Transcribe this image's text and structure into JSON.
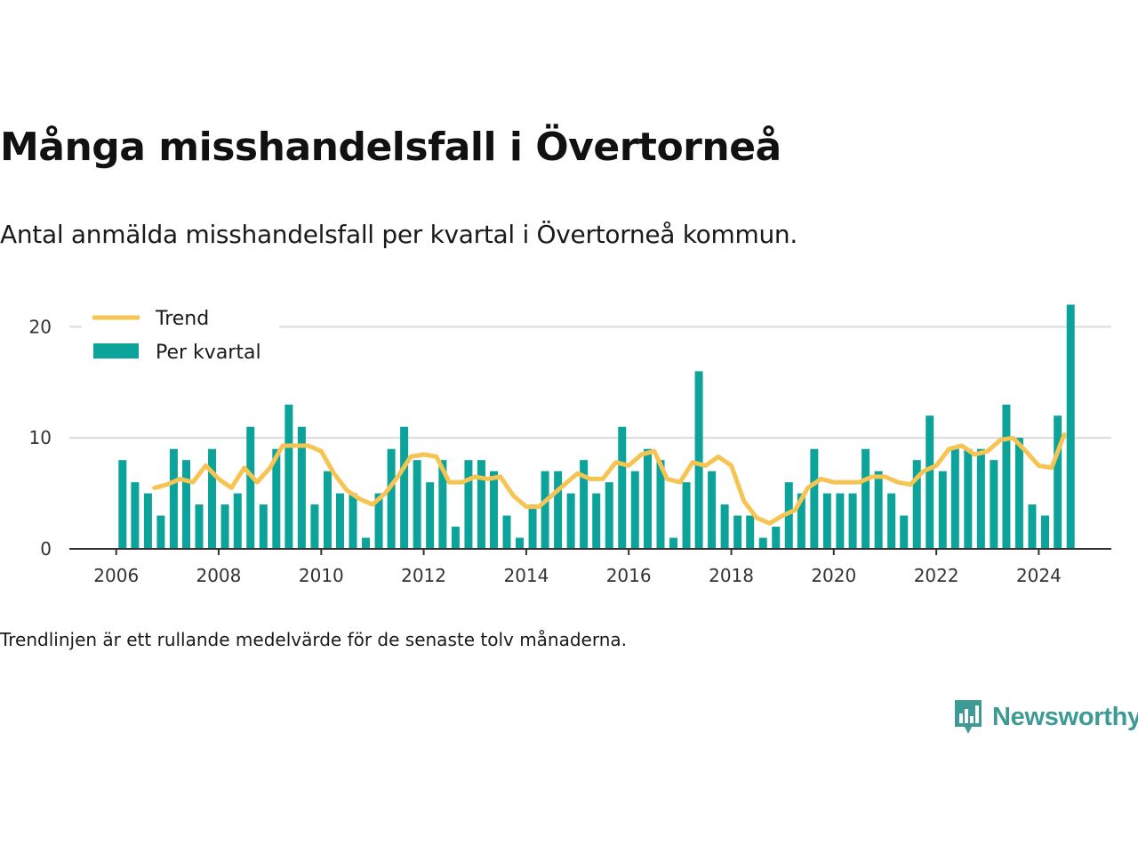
{
  "header": {
    "title": "Många misshandelsfall i Övertorneå",
    "subtitle": "Antal anmälda misshandelsfall per kvartal i Övertorneå kommun."
  },
  "footer": {
    "note": "Trendlinjen är ett rullande medelvärde för de senaste tolv månaderna.",
    "logo_text": "Newsworthy",
    "logo_icon": "bar-chart-speech-bubble-icon"
  },
  "colors": {
    "bar": "#0ba39a",
    "trend": "#f6c453",
    "grid": "#d9d9d9",
    "axis": "#333333",
    "logo": "#3d9a95"
  },
  "chart_data": {
    "type": "bar",
    "title": "",
    "xlabel": "",
    "ylabel": "",
    "ylim": [
      0,
      23
    ],
    "xlim": [
      "2005-02-01",
      "2025-06-01"
    ],
    "y_ticks": [
      0,
      10,
      20
    ],
    "x_ticks": [
      "2006",
      "2008",
      "2010",
      "2012",
      "2014",
      "2016",
      "2018",
      "2020",
      "2022",
      "2024"
    ],
    "grid": true,
    "legend_position": "top-left",
    "categories": [
      "2006 Q1",
      "2006 Q2",
      "2006 Q3",
      "2006 Q4",
      "2007 Q1",
      "2007 Q2",
      "2007 Q3",
      "2007 Q4",
      "2008 Q1",
      "2008 Q2",
      "2008 Q3",
      "2008 Q4",
      "2009 Q1",
      "2009 Q2",
      "2009 Q3",
      "2009 Q4",
      "2010 Q1",
      "2010 Q2",
      "2010 Q3",
      "2010 Q4",
      "2011 Q1",
      "2011 Q2",
      "2011 Q3",
      "2011 Q4",
      "2012 Q1",
      "2012 Q2",
      "2012 Q3",
      "2012 Q4",
      "2013 Q1",
      "2013 Q2",
      "2013 Q3",
      "2013 Q4",
      "2014 Q1",
      "2014 Q2",
      "2014 Q3",
      "2014 Q4",
      "2015 Q1",
      "2015 Q2",
      "2015 Q3",
      "2015 Q4",
      "2016 Q1",
      "2016 Q2",
      "2016 Q3",
      "2016 Q4",
      "2017 Q1",
      "2017 Q2",
      "2017 Q3",
      "2017 Q4",
      "2018 Q1",
      "2018 Q2",
      "2018 Q3",
      "2018 Q4",
      "2019 Q1",
      "2019 Q2",
      "2019 Q3",
      "2019 Q4",
      "2020 Q1",
      "2020 Q2",
      "2020 Q3",
      "2020 Q4",
      "2021 Q1",
      "2021 Q2",
      "2021 Q3",
      "2021 Q4",
      "2022 Q1",
      "2022 Q2",
      "2022 Q3",
      "2022 Q4",
      "2023 Q1",
      "2023 Q2",
      "2023 Q3",
      "2023 Q4",
      "2024 Q1",
      "2024 Q2",
      "2024 Q3"
    ],
    "series": [
      {
        "name": "Per kvartal",
        "kind": "bar",
        "values": [
          8,
          6,
          5,
          3,
          9,
          8,
          4,
          9,
          4,
          5,
          11,
          4,
          9,
          13,
          11,
          4,
          7,
          5,
          5,
          1,
          5,
          9,
          11,
          8,
          6,
          8,
          2,
          8,
          8,
          7,
          3,
          1,
          4,
          7,
          7,
          5,
          8,
          5,
          6,
          11,
          7,
          9,
          8,
          1,
          6,
          16,
          7,
          4,
          3,
          3,
          1,
          2,
          6,
          5,
          9,
          5,
          5,
          5,
          9,
          7,
          5,
          3,
          8,
          12,
          7,
          9,
          9,
          9,
          8,
          13,
          10,
          4,
          3,
          12,
          22
        ]
      },
      {
        "name": "Trend",
        "kind": "line",
        "x": [
          "2006-10-01",
          "2007-01-01",
          "2007-04-01",
          "2007-07-01",
          "2007-10-01",
          "2008-01-01",
          "2008-04-01",
          "2008-07-01",
          "2008-10-01",
          "2009-01-01",
          "2009-04-01",
          "2009-07-01",
          "2009-10-01",
          "2010-01-01",
          "2010-04-01",
          "2010-07-01",
          "2010-10-01",
          "2011-01-01",
          "2011-04-01",
          "2011-07-01",
          "2011-10-01",
          "2012-01-01",
          "2012-04-01",
          "2012-07-01",
          "2012-10-01",
          "2013-01-01",
          "2013-04-01",
          "2013-07-01",
          "2013-10-01",
          "2014-01-01",
          "2014-04-01",
          "2014-07-01",
          "2014-10-01",
          "2015-01-01",
          "2015-04-01",
          "2015-07-01",
          "2015-10-01",
          "2016-01-01",
          "2016-04-01",
          "2016-07-01",
          "2016-10-01",
          "2017-01-01",
          "2017-04-01",
          "2017-07-01",
          "2017-10-01",
          "2018-01-01",
          "2018-04-01",
          "2018-07-01",
          "2018-10-01",
          "2019-01-01",
          "2019-04-01",
          "2019-07-01",
          "2019-10-01",
          "2020-01-01",
          "2020-04-01",
          "2020-07-01",
          "2020-10-01",
          "2021-01-01",
          "2021-04-01",
          "2021-07-01",
          "2021-10-01",
          "2022-01-01",
          "2022-04-01",
          "2022-07-01",
          "2022-10-01",
          "2023-01-01",
          "2023-04-01",
          "2023-07-01",
          "2023-10-01",
          "2024-01-01",
          "2024-04-01",
          "2024-07-01"
        ],
        "values": [
          5.5,
          5.8,
          6.3,
          6.0,
          7.5,
          6.3,
          5.5,
          7.3,
          6.0,
          7.3,
          9.3,
          9.3,
          9.3,
          8.8,
          6.8,
          5.3,
          4.5,
          4.0,
          5.0,
          6.5,
          8.3,
          8.5,
          8.3,
          6.0,
          6.0,
          6.5,
          6.3,
          6.5,
          4.8,
          3.8,
          3.8,
          4.8,
          5.8,
          6.8,
          6.3,
          6.3,
          7.8,
          7.5,
          8.5,
          8.8,
          6.3,
          6.0,
          7.8,
          7.5,
          8.3,
          7.5,
          4.3,
          2.8,
          2.3,
          3.0,
          3.5,
          5.5,
          6.3,
          6.0,
          6.0,
          6.0,
          6.5,
          6.5,
          6.0,
          5.8,
          7.0,
          7.5,
          9.0,
          9.3,
          8.5,
          8.8,
          9.8,
          10.0,
          8.8,
          7.5,
          7.3,
          10.3
        ]
      }
    ]
  }
}
